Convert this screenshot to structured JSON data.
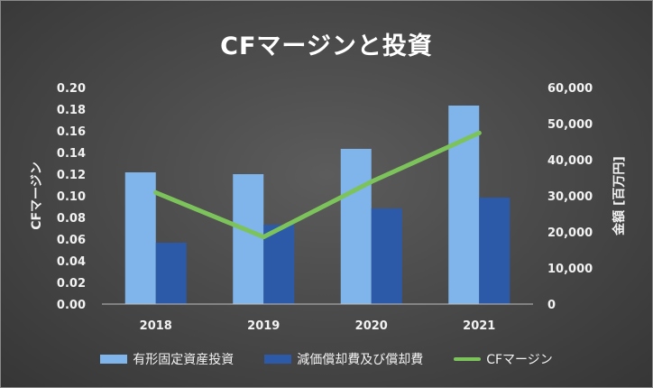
{
  "chart_data": {
    "type": "bar",
    "title": "CFマージンと投資",
    "categories": [
      "2018",
      "2019",
      "2020",
      "2021"
    ],
    "y_left": {
      "label": "CFマージン",
      "ylim": [
        0,
        0.2
      ],
      "ticks": [
        "0.00",
        "0.02",
        "0.04",
        "0.06",
        "0.08",
        "0.10",
        "0.12",
        "0.14",
        "0.16",
        "0.18",
        "0.20"
      ]
    },
    "y_right": {
      "label": "金額 [百万円]",
      "ylim": [
        0,
        60000
      ],
      "ticks": [
        "0",
        "10,000",
        "20,000",
        "30,000",
        "40,000",
        "50,000",
        "60,000"
      ]
    },
    "series": [
      {
        "name": "有形固定資産投資",
        "type": "bar",
        "axis": "right",
        "color": "#7fb5ea",
        "values": [
          36500,
          36000,
          43000,
          55000
        ]
      },
      {
        "name": "減価償却費及び償却費",
        "type": "bar",
        "axis": "right",
        "color": "#2d5aa8",
        "values": [
          17000,
          22000,
          26500,
          29500
        ]
      },
      {
        "name": "CFマージン",
        "type": "line",
        "axis": "left",
        "color": "#7dc35b",
        "values": [
          0.103,
          0.062,
          0.113,
          0.158
        ]
      }
    ],
    "grid": false,
    "legend": "bottom"
  }
}
